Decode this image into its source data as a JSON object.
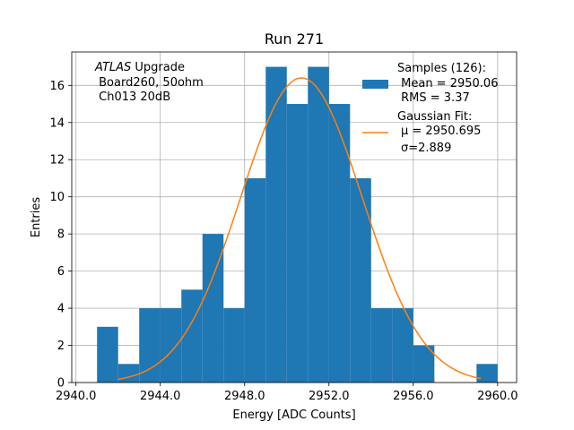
{
  "chart_data": {
    "type": "bar",
    "title": "Run 271",
    "xlabel": "Energy [ADC Counts]",
    "ylabel": "Entries",
    "xlim": [
      2939.8,
      2960.9
    ],
    "ylim": [
      0,
      17.8
    ],
    "grid": true,
    "x_ticks": [
      2940.0,
      2944.0,
      2948.0,
      2952.0,
      2956.0,
      2960.0
    ],
    "x_tick_labels": [
      "2940.0",
      "2944.0",
      "2948.0",
      "2952.0",
      "2956.0",
      "2960.0"
    ],
    "y_ticks": [
      0,
      2,
      4,
      6,
      8,
      10,
      12,
      14,
      16
    ],
    "y_tick_labels": [
      "0",
      "2",
      "4",
      "6",
      "8",
      "10",
      "12",
      "14",
      "16"
    ],
    "bin_width": 1.0,
    "histogram": {
      "name": "Samples (126)",
      "color": "#1f77b4",
      "bin_edges": [
        2941,
        2942,
        2943,
        2944,
        2945,
        2946,
        2947,
        2948,
        2949,
        2950,
        2951,
        2952,
        2953,
        2954,
        2955,
        2956,
        2957,
        2958,
        2959,
        2960
      ],
      "counts": [
        3,
        1,
        4,
        4,
        5,
        8,
        4,
        11,
        17,
        15,
        17,
        15,
        11,
        4,
        4,
        2,
        0,
        0,
        1
      ]
    },
    "gaussian_fit": {
      "name": "Gaussian Fit",
      "color": "#ff7f0e",
      "mu": 2950.695,
      "sigma": 2.889,
      "amplitude": 16.4,
      "x_range": [
        2942,
        2959.2
      ]
    },
    "annotation": {
      "italic_part": "ATLAS",
      "line1_rest": " Upgrade",
      "line2": " Board260, 50ohm",
      "line3": " Ch013 20dB"
    },
    "legend": {
      "position": "top-right",
      "samples_title": "Samples (126):",
      "samples_mean": " Mean = 2950.06",
      "samples_rms": " RMS = 3.37",
      "fit_title": "Gaussian Fit:",
      "fit_mu": "μ = 2950.695",
      "fit_sigma": "σ=2.889"
    }
  }
}
